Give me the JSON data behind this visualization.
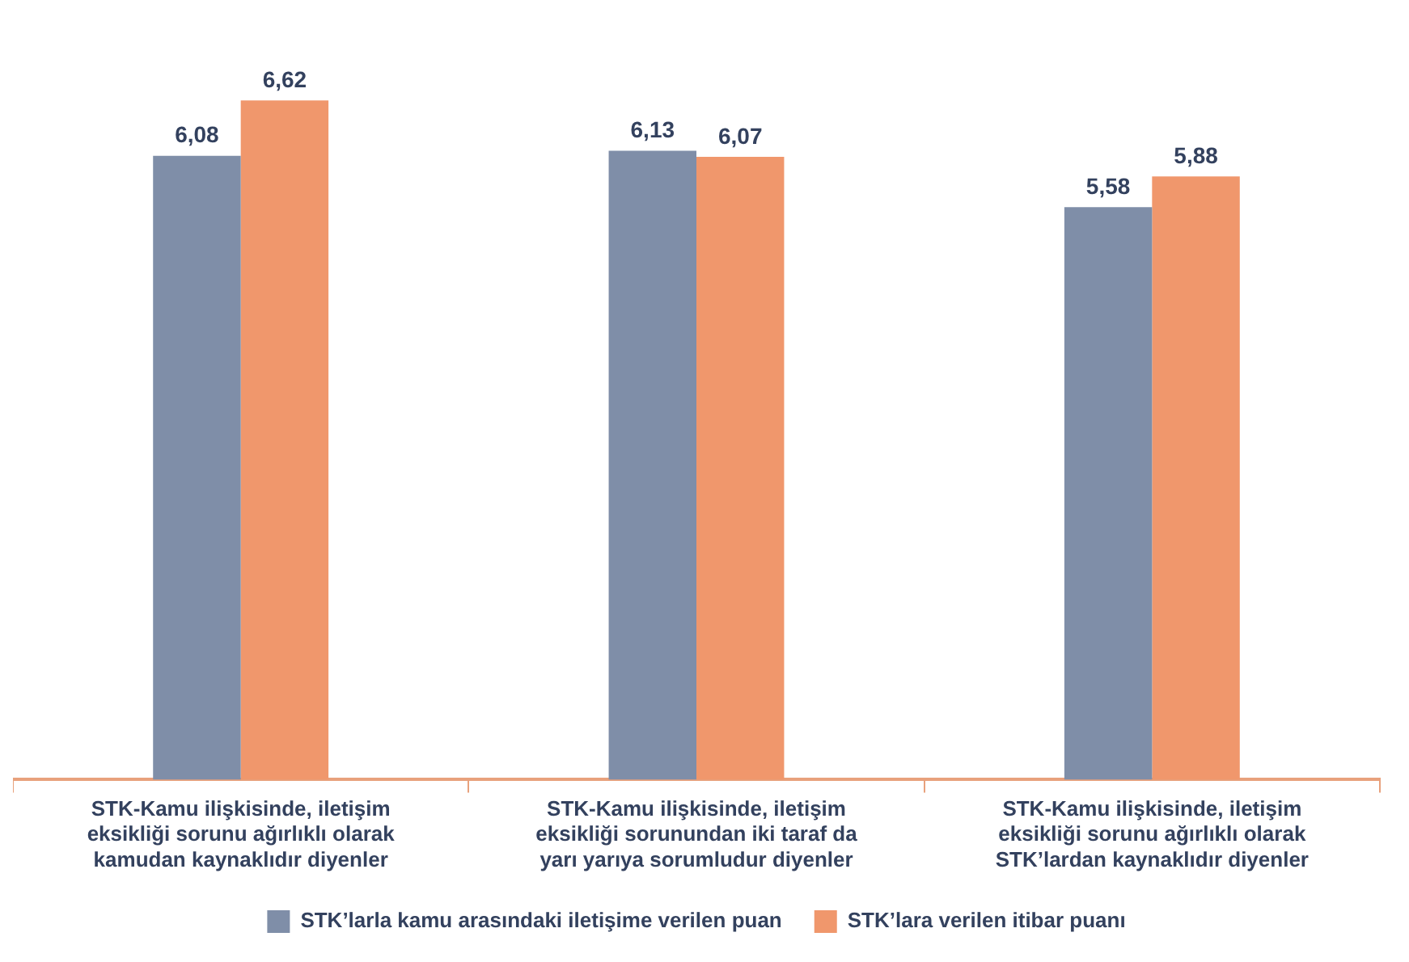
{
  "chart_data": {
    "type": "bar",
    "categories": [
      "STK-Kamu ilişkisinde, iletişim eksikliği sorunu ağırlıklı olarak kamudan kaynaklıdır diyenler",
      "STK-Kamu ilişkisinde, iletişim eksikliği sorunundan iki taraf da yarı yarıya sorumludur diyenler",
      "STK-Kamu ilişkisinde, iletişim eksikliği sorunu ağırlıklı olarak STK’lardan kaynaklıdır diyenler"
    ],
    "series": [
      {
        "name": "STK’larla kamu arasındaki iletişime verilen puan",
        "color": "#7f8ea8",
        "values": [
          6.08,
          6.13,
          5.58
        ],
        "value_labels": [
          "6,08",
          "6,13",
          "5,58"
        ]
      },
      {
        "name": "STK’lara verilen itibar puanı",
        "color": "#f0976c",
        "values": [
          6.62,
          6.07,
          5.88
        ],
        "value_labels": [
          "6,62",
          "6,07",
          "5,88"
        ]
      }
    ],
    "tick_labels": "x",
    "grid": false,
    "legend": "bottom"
  }
}
